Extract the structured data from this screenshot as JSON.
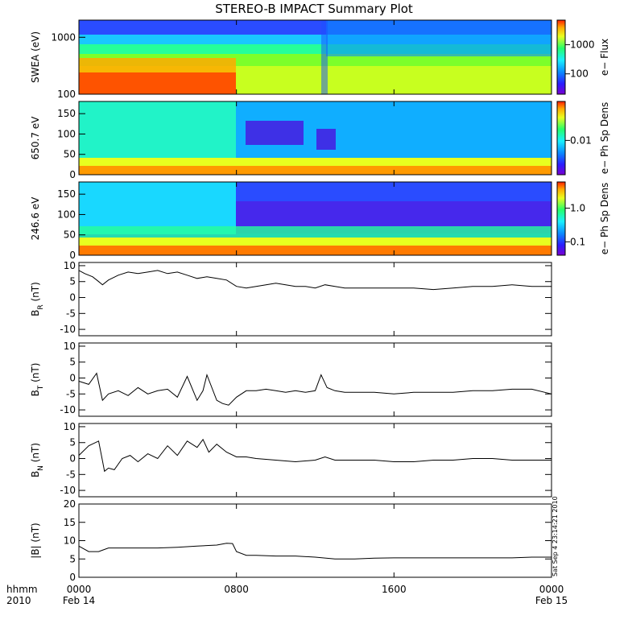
{
  "page_title": "STEREO-B IMPACT Summary Plot",
  "side_text": "Sat Sep  4 23:14:21 2010",
  "x_axis": {
    "row1_label": "hhmm",
    "row2_label": "2010",
    "ticks": [
      {
        "hour": 0,
        "label": "0000",
        "date": "Feb 14"
      },
      {
        "hour": 8,
        "label": "0800",
        "date": ""
      },
      {
        "hour": 16,
        "label": "1600",
        "date": ""
      },
      {
        "hour": 24,
        "label": "0000",
        "date": "Feb 15"
      }
    ],
    "range_hours": [
      0,
      24
    ]
  },
  "colors": {
    "trace": "#000000",
    "colorbar_stops": [
      "#7a00d0",
      "#2a1cff",
      "#0a8cff",
      "#19f0ff",
      "#25ff6a",
      "#e8ff1f",
      "#ffaa00",
      "#ff1e00"
    ]
  },
  "chart_data": [
    {
      "type": "heatmap",
      "ylabel": "SWEA (eV)",
      "scale": "log",
      "ylim": [
        100,
        2000
      ],
      "yticks": [
        {
          "value": 100,
          "label": "100"
        },
        {
          "value": 1000,
          "label": "1000"
        }
      ],
      "colorbar": {
        "label": "e− Flux",
        "scale": "log",
        "range": [
          20,
          7000
        ],
        "ticks": [
          {
            "value": 100,
            "label": "100"
          },
          {
            "value": 1000,
            "label": "1000"
          }
        ]
      }
    },
    {
      "type": "heatmap",
      "ylabel": "650.7 eV",
      "scale": "linear",
      "ylim": [
        0,
        180
      ],
      "yticks": [
        {
          "value": 0,
          "label": "0"
        },
        {
          "value": 50,
          "label": "50"
        },
        {
          "value": 100,
          "label": "100"
        },
        {
          "value": 150,
          "label": "150"
        }
      ],
      "colorbar": {
        "label": "e− Ph Sp Dens",
        "scale": "log",
        "range": [
          0.0005,
          0.3
        ],
        "ticks": [
          {
            "value": 0.01,
            "label": "0.01"
          }
        ]
      }
    },
    {
      "type": "heatmap",
      "ylabel": "246.6 eV",
      "scale": "linear",
      "ylim": [
        0,
        180
      ],
      "yticks": [
        {
          "value": 0,
          "label": "0"
        },
        {
          "value": 50,
          "label": "50"
        },
        {
          "value": 100,
          "label": "100"
        },
        {
          "value": 150,
          "label": "150"
        }
      ],
      "colorbar": {
        "label": "e− Ph Sp Dens",
        "scale": "log",
        "range": [
          0.04,
          6
        ],
        "ticks": [
          {
            "value": 0.1,
            "label": "0.1"
          },
          {
            "value": 1.0,
            "label": "1.0"
          }
        ]
      }
    },
    {
      "type": "line",
      "ylabel": "B",
      "ylabel_sub": "R",
      "ylabel_unit": " (nT)",
      "ylim": [
        -12,
        11
      ],
      "yticks": [
        -10,
        -5,
        0,
        5,
        10
      ],
      "series": [
        {
          "x": [
            0,
            0.3,
            0.7,
            1,
            1.2,
            1.5,
            2,
            2.5,
            3,
            3.5,
            4,
            4.5,
            5,
            5.5,
            6,
            6.5,
            7,
            7.5,
            8,
            8.5,
            9,
            9.5,
            10,
            10.5,
            11,
            11.5,
            12,
            12.5,
            13,
            13.5,
            14,
            15,
            16,
            17,
            18,
            19,
            20,
            21,
            22,
            23,
            23.5,
            24
          ],
          "y": [
            8.5,
            7.5,
            6.5,
            5,
            4,
            5.5,
            7,
            8,
            7.5,
            8,
            8.5,
            7.5,
            8,
            7,
            6,
            6.5,
            6,
            5.5,
            3.5,
            3,
            3.5,
            4,
            4.5,
            4,
            3.5,
            3.5,
            3,
            4,
            3.5,
            3,
            3,
            3,
            3,
            3,
            2.5,
            3,
            3.5,
            3.5,
            4,
            3.5,
            3.5,
            3.5
          ]
        }
      ]
    },
    {
      "type": "line",
      "ylabel": "B",
      "ylabel_sub": "T",
      "ylabel_unit": " (nT)",
      "ylim": [
        -12,
        11
      ],
      "yticks": [
        -10,
        -5,
        0,
        5,
        10
      ],
      "series": [
        {
          "x": [
            0,
            0.5,
            0.9,
            1.2,
            1.5,
            2,
            2.5,
            3,
            3.5,
            4,
            4.5,
            5,
            5.5,
            6,
            6.3,
            6.5,
            7,
            7.3,
            7.6,
            8,
            8.5,
            9,
            9.5,
            10,
            10.5,
            11,
            11.5,
            12,
            12.3,
            12.6,
            13,
            13.5,
            14,
            15,
            16,
            17,
            18,
            19,
            20,
            21,
            22,
            23,
            24
          ],
          "y": [
            -1,
            -2,
            1.5,
            -7,
            -5,
            -4,
            -5.5,
            -3,
            -5,
            -4,
            -3.5,
            -6,
            0.5,
            -7,
            -4,
            1,
            -7,
            -8,
            -8.5,
            -6,
            -4,
            -4,
            -3.5,
            -4,
            -4.5,
            -4,
            -4.5,
            -4,
            1,
            -3,
            -4,
            -4.5,
            -4.5,
            -4.5,
            -5,
            -4.5,
            -4.5,
            -4.5,
            -4,
            -4,
            -3.5,
            -3.5,
            -5
          ]
        }
      ]
    },
    {
      "type": "line",
      "ylabel": "B",
      "ylabel_sub": "N",
      "ylabel_unit": " (nT)",
      "ylim": [
        -12,
        11
      ],
      "yticks": [
        -10,
        -5,
        0,
        5,
        10
      ],
      "series": [
        {
          "x": [
            0,
            0.5,
            1,
            1.3,
            1.5,
            1.8,
            2.2,
            2.6,
            3,
            3.5,
            4,
            4.5,
            5,
            5.5,
            6,
            6.3,
            6.6,
            7,
            7.5,
            8,
            8.5,
            9,
            10,
            11,
            12,
            12.5,
            13,
            14,
            15,
            16,
            17,
            18,
            19,
            20,
            21,
            22,
            23,
            23.5,
            24
          ],
          "y": [
            1,
            4,
            5.5,
            -4,
            -3,
            -3.5,
            0,
            1,
            -1,
            1.5,
            0,
            4,
            1,
            5.5,
            3.5,
            6,
            2,
            4.5,
            2,
            0.5,
            0.5,
            0,
            -0.5,
            -1,
            -0.5,
            0.5,
            -0.5,
            -0.5,
            -0.5,
            -1,
            -1,
            -0.5,
            -0.5,
            0,
            0,
            -0.5,
            -0.5,
            -0.5,
            -0.5
          ]
        }
      ]
    },
    {
      "type": "line",
      "ylabel": "|B|",
      "ylabel_sub": "",
      "ylabel_unit": " (nT)",
      "ylim": [
        0,
        20
      ],
      "yticks": [
        0,
        5,
        10,
        15,
        20
      ],
      "series": [
        {
          "x": [
            0,
            0.5,
            1,
            1.5,
            2,
            3,
            4,
            5,
            6,
            7,
            7.5,
            7.8,
            8,
            8.5,
            9,
            10,
            11,
            12,
            13,
            14,
            15,
            16,
            17,
            18,
            19,
            20,
            21,
            22,
            23,
            24
          ],
          "y": [
            8.5,
            7,
            7,
            8,
            8,
            8,
            8,
            8.2,
            8.5,
            8.8,
            9.3,
            9.2,
            7,
            6,
            6,
            5.8,
            5.8,
            5.5,
            5,
            5,
            5.2,
            5.3,
            5.3,
            5.3,
            5.3,
            5.3,
            5.3,
            5.3,
            5.5,
            5.5
          ]
        }
      ]
    }
  ]
}
